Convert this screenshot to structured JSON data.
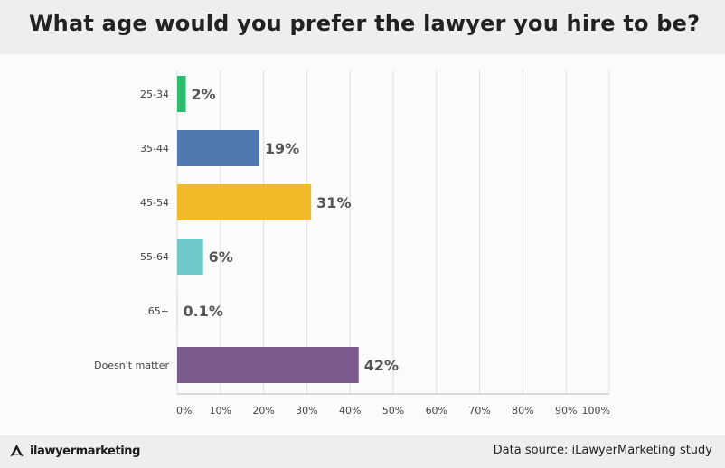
{
  "header": {
    "title": "What age would you prefer the lawyer you hire to be?"
  },
  "chart_data": {
    "type": "bar",
    "orientation": "horizontal",
    "categories": [
      "25-34",
      "35-44",
      "45-54",
      "55-64",
      "65+",
      "Doesn't matter"
    ],
    "values": [
      2,
      19,
      31,
      6,
      0.1,
      42
    ],
    "value_labels": [
      "2%",
      "19%",
      "31%",
      "6%",
      "0.1%",
      "42%"
    ],
    "colors": [
      "#2dbb6e",
      "#5079b0",
      "#f2b929",
      "#6fc7ca",
      "#cccccc",
      "#7b5b8d"
    ],
    "xlim": [
      0,
      100
    ],
    "x_ticks": [
      "0%",
      "10%",
      "20%",
      "30%",
      "40%",
      "50%",
      "60%",
      "70%",
      "80%",
      "90%",
      "100%"
    ],
    "grid": true,
    "title": "",
    "xlabel": "",
    "ylabel": ""
  },
  "footer": {
    "brand": "ilawyermarketing",
    "source": "Data source: iLawyerMarketing study"
  }
}
